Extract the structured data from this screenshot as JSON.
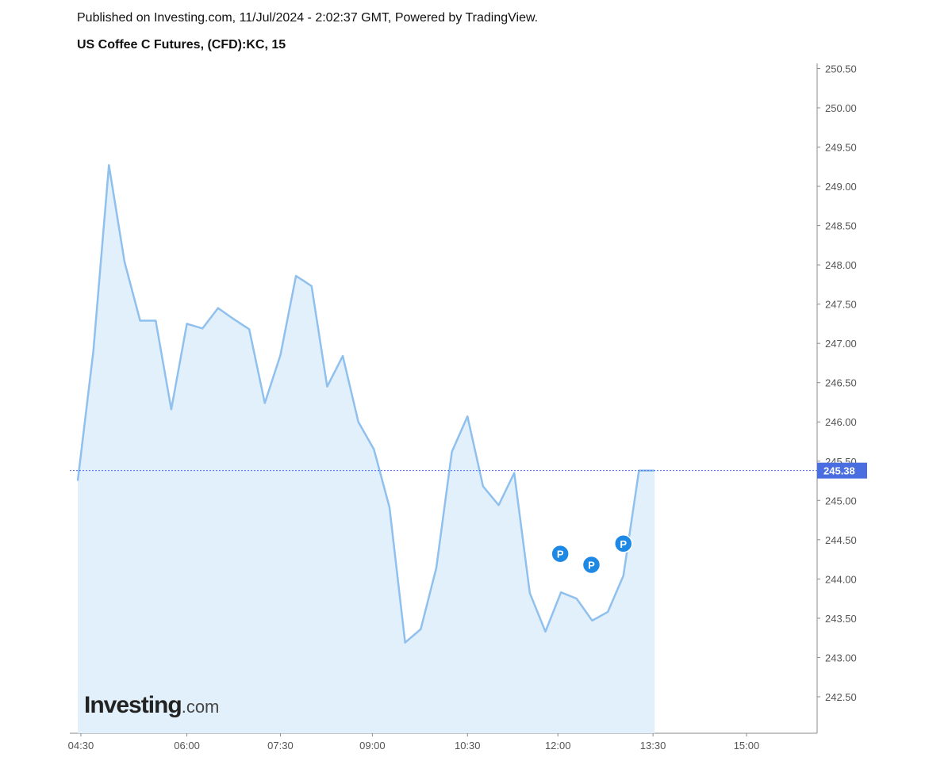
{
  "header": {
    "published": "Published on Investing.com, 11/Jul/2024 - 2:02:37 GMT, Powered by TradingView.",
    "title": "US Coffee C Futures, (CFD):KC, 15"
  },
  "logo": {
    "main": "Investing",
    "suffix": ".com"
  },
  "colors": {
    "line": "#8fc0ee",
    "fill": "#e1f0fa",
    "last_price": "#4a6ee0",
    "marker": "#1e88e5"
  },
  "chart_data": {
    "type": "area",
    "title": "US Coffee C Futures, (CFD):KC, 15",
    "xlabel": "",
    "ylabel": "",
    "interval_minutes": 15,
    "x_index_range": [
      -0.2,
      47.2
    ],
    "ylim": [
      241.98,
      250.55
    ],
    "values": [
      245.25,
      246.9,
      249.27,
      248.04,
      247.29,
      247.29,
      246.16,
      247.25,
      247.19,
      247.45,
      247.31,
      247.18,
      246.24,
      246.85,
      247.86,
      247.73,
      246.45,
      246.84,
      246.0,
      245.65,
      244.91,
      243.19,
      243.36,
      244.14,
      245.62,
      246.07,
      245.18,
      244.94,
      245.35,
      243.82,
      243.33,
      243.83,
      243.75,
      243.47,
      243.58,
      244.04,
      245.38,
      245.38
    ],
    "last_price": "245.38",
    "last_price_value": 245.38,
    "y_ticks": [
      "242.50",
      "243.00",
      "243.50",
      "244.00",
      "244.50",
      "245.00",
      "245.50",
      "246.00",
      "246.50",
      "247.00",
      "247.50",
      "248.00",
      "248.50",
      "249.00",
      "249.50",
      "250.00",
      "250.50"
    ],
    "x_ticks": [
      {
        "label": "04:30",
        "index": 0.2
      },
      {
        "label": "06:00",
        "index": 7.0
      },
      {
        "label": "07:30",
        "index": 13.0
      },
      {
        "label": "09:00",
        "index": 18.9
      },
      {
        "label": "10:30",
        "index": 25.0
      },
      {
        "label": "12:00",
        "index": 30.8
      },
      {
        "label": "13:30",
        "index": 36.9
      },
      {
        "label": "15:00",
        "index": 42.9
      }
    ],
    "markers": [
      {
        "label": "P",
        "index": 30.95,
        "value": 244.32
      },
      {
        "label": "P",
        "index": 32.95,
        "value": 244.18
      },
      {
        "label": "P",
        "index": 35.0,
        "value": 244.45
      }
    ],
    "grid": false,
    "legend": "none"
  }
}
